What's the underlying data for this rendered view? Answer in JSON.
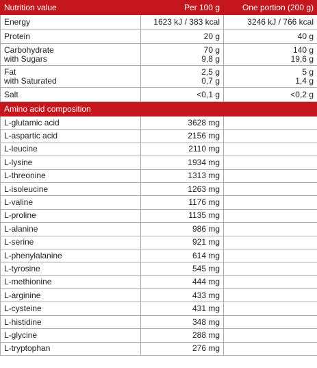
{
  "nutrition": {
    "header": [
      "Nutrition value",
      "Per 100 g",
      "One portion (200 g)"
    ],
    "rows": [
      [
        [
          "Energy"
        ],
        [
          "1623 kJ / 383 kcal"
        ],
        [
          "3246 kJ / 766 kcal"
        ]
      ],
      [
        [
          "Protein"
        ],
        [
          "20 g"
        ],
        [
          "40 g"
        ]
      ],
      [
        [
          "Carbohydrate",
          "with Sugars"
        ],
        [
          "70 g",
          "9,8 g"
        ],
        [
          "140 g",
          "19,6 g"
        ]
      ],
      [
        [
          "Fat",
          "with Saturated"
        ],
        [
          "2,5 g",
          "0,7 g"
        ],
        [
          "5 g",
          "1,4 g"
        ]
      ],
      [
        [
          "Salt"
        ],
        [
          "<0,1 g"
        ],
        [
          "<0,2 g"
        ]
      ]
    ]
  },
  "amino": {
    "title": "Amino acid composition",
    "rows": [
      [
        "L-glutamic acid",
        "3628 mg"
      ],
      [
        "L-aspartic acid",
        "2156 mg"
      ],
      [
        "L-leucine",
        "2110 mg"
      ],
      [
        "L-lysine",
        "1934 mg"
      ],
      [
        "L-threonine",
        "1313 mg"
      ],
      [
        "L-isoleucine",
        "1263 mg"
      ],
      [
        "L-valine",
        "1176 mg"
      ],
      [
        "L-proline",
        "1135 mg"
      ],
      [
        "L-alanine",
        "986 mg"
      ],
      [
        "L-serine",
        "921 mg"
      ],
      [
        "L-phenylalanine",
        "614 mg"
      ],
      [
        "L-tyrosine",
        "545 mg"
      ],
      [
        "L-methionine",
        "444 mg"
      ],
      [
        "L-arginine",
        "433 mg"
      ],
      [
        "L-cysteine",
        "431 mg"
      ],
      [
        "L-histidine",
        "348 mg"
      ],
      [
        "L-glycine",
        "288 mg"
      ],
      [
        "L-tryptophan",
        "276 mg"
      ]
    ]
  }
}
